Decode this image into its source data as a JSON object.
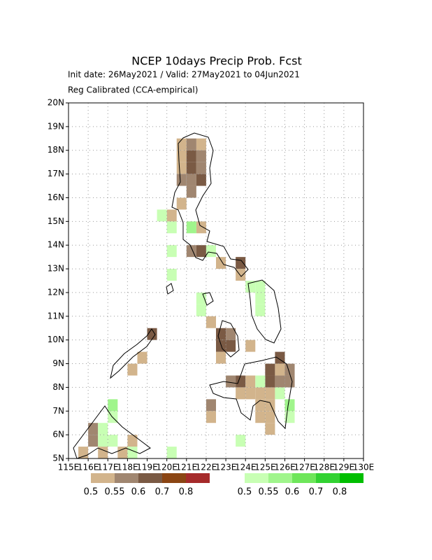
{
  "chart_data": {
    "type": "gridmap",
    "title": "NCEP 10days Precip Prob. Fcst",
    "subtitle": "Init date: 26May2021 / Valid: 27May2021 to 04Jun2021",
    "note": "Reg Calibrated (CCA-empirical)",
    "xlim": [
      115,
      130
    ],
    "ylim": [
      5,
      20
    ],
    "xticks": [
      {
        "value": 115,
        "label": "115E"
      },
      {
        "value": 116,
        "label": "116E"
      },
      {
        "value": 117,
        "label": "117E"
      },
      {
        "value": 118,
        "label": "118E"
      },
      {
        "value": 119,
        "label": "119E"
      },
      {
        "value": 120,
        "label": "120E"
      },
      {
        "value": 121,
        "label": "121E"
      },
      {
        "value": 122,
        "label": "122E"
      },
      {
        "value": 123,
        "label": "123E"
      },
      {
        "value": 124,
        "label": "124E"
      },
      {
        "value": 125,
        "label": "125E"
      },
      {
        "value": 126,
        "label": "126E"
      },
      {
        "value": 127,
        "label": "127E"
      },
      {
        "value": 128,
        "label": "128E"
      },
      {
        "value": 129,
        "label": "129E"
      },
      {
        "value": 130,
        "label": "130E"
      }
    ],
    "yticks": [
      {
        "value": 5,
        "label": "5N"
      },
      {
        "value": 6,
        "label": "6N"
      },
      {
        "value": 7,
        "label": "7N"
      },
      {
        "value": 8,
        "label": "8N"
      },
      {
        "value": 9,
        "label": "9N"
      },
      {
        "value": 10,
        "label": "10N"
      },
      {
        "value": 11,
        "label": "11N"
      },
      {
        "value": 12,
        "label": "12N"
      },
      {
        "value": 13,
        "label": "13N"
      },
      {
        "value": 14,
        "label": "14N"
      },
      {
        "value": 15,
        "label": "15N"
      },
      {
        "value": 16,
        "label": "16N"
      },
      {
        "value": 17,
        "label": "17N"
      },
      {
        "value": 18,
        "label": "18N"
      },
      {
        "value": 19,
        "label": "19N"
      },
      {
        "value": 20,
        "label": "20N"
      }
    ],
    "grid": true,
    "cell_size": 0.5,
    "legends": [
      {
        "colors": [
          "#d2b48c",
          "#a08670",
          "#7a5a44",
          "#8b4513",
          "#a52a2a"
        ],
        "labels": [
          0.5,
          0.55,
          0.6,
          0.7,
          0.8
        ]
      },
      {
        "colors": [
          "#c8ffb4",
          "#a0f58c",
          "#6ee65a",
          "#32d232",
          "#00be00"
        ],
        "labels": [
          0.5,
          0.55,
          0.6,
          0.7,
          0.8
        ]
      }
    ],
    "dry_cells": [
      [
        120.5,
        18,
        0.5
      ],
      [
        121.5,
        18,
        0.5
      ],
      [
        121,
        18,
        0.55
      ],
      [
        120.5,
        17.5,
        0.5
      ],
      [
        121,
        17.5,
        0.6
      ],
      [
        121.5,
        17.5,
        0.55
      ],
      [
        120.5,
        17,
        0.5
      ],
      [
        121,
        17,
        0.6
      ],
      [
        121.5,
        17,
        0.55
      ],
      [
        120.5,
        16.5,
        0.55
      ],
      [
        121,
        16.5,
        0.55
      ],
      [
        121.5,
        16.5,
        0.6
      ],
      [
        121,
        16,
        0.55
      ],
      [
        120.5,
        15.5,
        0.5
      ],
      [
        120,
        15,
        0.5
      ],
      [
        121.5,
        14.5,
        0.5
      ],
      [
        121,
        13.5,
        0.55
      ],
      [
        121.5,
        13.5,
        0.6
      ],
      [
        122.5,
        13,
        0.5
      ],
      [
        123.5,
        13,
        0.6
      ],
      [
        123.5,
        12.5,
        0.5
      ],
      [
        122,
        10.5,
        0.5
      ],
      [
        122.5,
        10,
        0.6
      ],
      [
        123,
        10,
        0.55
      ],
      [
        122.5,
        9.5,
        0.6
      ],
      [
        123,
        9.5,
        0.6
      ],
      [
        124,
        9.5,
        0.5
      ],
      [
        122.5,
        9,
        0.5
      ],
      [
        123,
        8,
        0.55
      ],
      [
        123.5,
        8,
        0.6
      ],
      [
        124,
        8,
        0.5
      ],
      [
        123.5,
        7.5,
        0.5
      ],
      [
        124,
        7.5,
        0.5
      ],
      [
        124.5,
        7.5,
        0.5
      ],
      [
        125,
        7.5,
        0.5
      ],
      [
        125,
        8,
        0.6
      ],
      [
        125.5,
        8,
        0.55
      ],
      [
        125,
        8.5,
        0.6
      ],
      [
        125.5,
        8.5,
        0.5
      ],
      [
        126,
        8.5,
        0.55
      ],
      [
        126,
        8,
        0.55
      ],
      [
        125.5,
        9,
        0.6
      ],
      [
        124.5,
        7,
        0.5
      ],
      [
        125,
        7,
        0.5
      ],
      [
        124.5,
        6.5,
        0.5
      ],
      [
        125,
        6.5,
        0.5
      ],
      [
        125,
        6,
        0.5
      ],
      [
        122,
        7,
        0.55
      ],
      [
        122,
        6.5,
        0.5
      ],
      [
        119,
        10,
        0.6
      ],
      [
        118.5,
        9,
        0.5
      ],
      [
        118,
        8.5,
        0.5
      ],
      [
        116,
        6,
        0.55
      ],
      [
        116,
        5.5,
        0.55
      ],
      [
        115.5,
        5,
        0.5
      ],
      [
        117.5,
        5,
        0.5
      ],
      [
        118,
        5.5,
        0.5
      ],
      [
        116.5,
        5,
        0.5
      ]
    ],
    "wet_cells": [
      [
        119.5,
        15,
        0.5
      ],
      [
        120,
        14.5,
        0.5
      ],
      [
        121,
        14.5,
        0.55
      ],
      [
        122,
        13.5,
        0.5
      ],
      [
        120,
        13.5,
        0.5
      ],
      [
        120,
        12.5,
        0.5
      ],
      [
        124,
        12,
        0.5
      ],
      [
        124.5,
        12,
        0.5
      ],
      [
        124.5,
        11.5,
        0.5
      ],
      [
        124.5,
        11,
        0.5
      ],
      [
        121.5,
        11,
        0.5
      ],
      [
        121.5,
        11.5,
        0.5
      ],
      [
        124.5,
        8,
        0.5
      ],
      [
        125.5,
        7.5,
        0.5
      ],
      [
        126,
        7,
        0.55
      ],
      [
        126,
        6.5,
        0.5
      ],
      [
        116.5,
        6,
        0.5
      ],
      [
        117,
        6.5,
        0.5
      ],
      [
        117,
        7,
        0.55
      ],
      [
        117,
        5.5,
        0.5
      ],
      [
        116.5,
        5.5,
        0.5
      ],
      [
        118,
        5,
        0.5
      ],
      [
        120,
        5,
        0.5
      ],
      [
        123.5,
        5.5,
        0.5
      ]
    ]
  }
}
